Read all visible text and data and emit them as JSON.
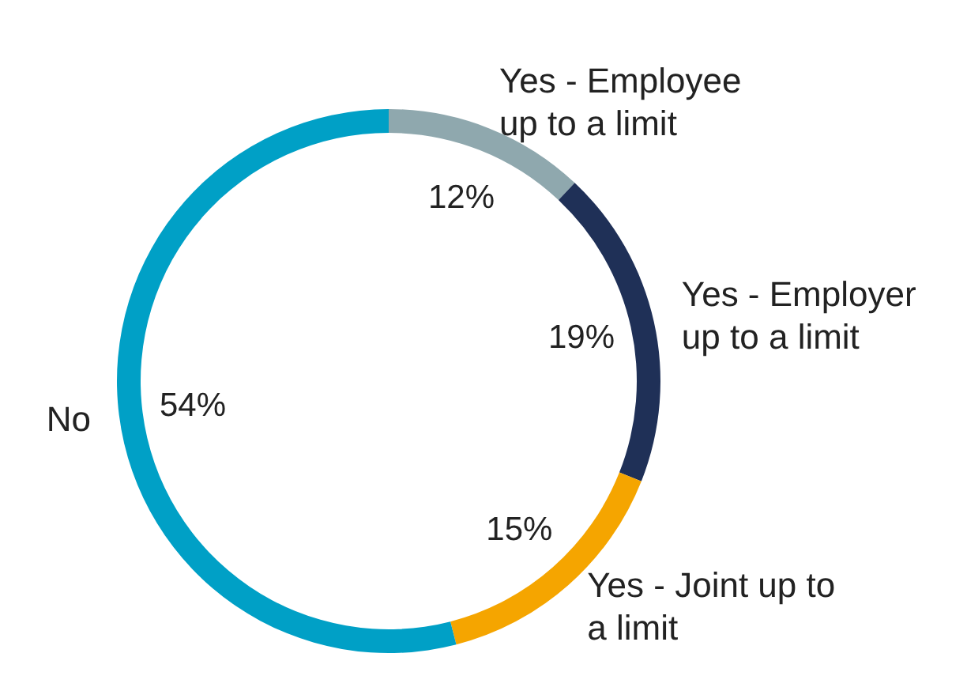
{
  "chart_data": {
    "type": "donut",
    "categories": [
      "Yes - Employee up to a limit",
      "Yes - Employer up to a limit",
      "Yes - Joint up to a limit",
      "No"
    ],
    "values": [
      12,
      19,
      15,
      54
    ],
    "colors": [
      "#8fa8ae",
      "#1f3057",
      "#f5a500",
      "#00a0c6"
    ],
    "value_labels": [
      "12%",
      "19%",
      "15%",
      "54%"
    ]
  }
}
